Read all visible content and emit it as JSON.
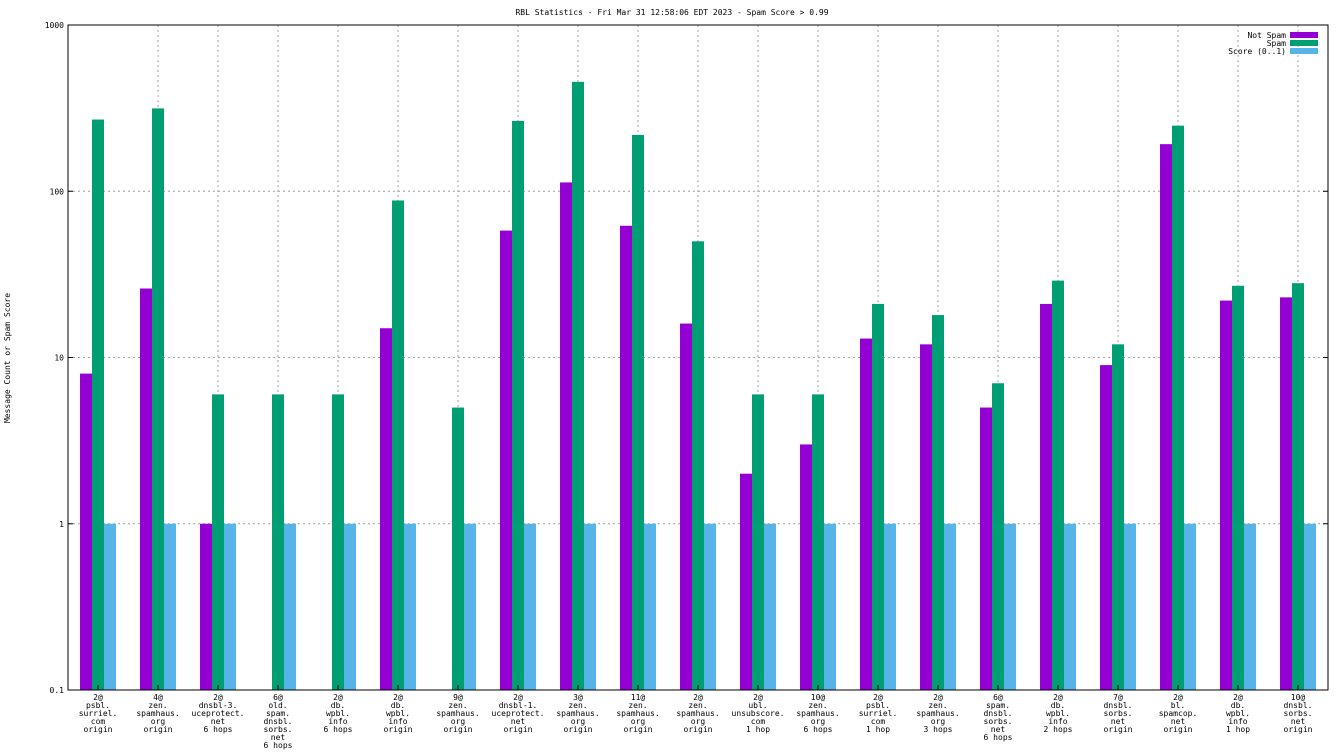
{
  "chart_data": {
    "type": "bar",
    "title": "RBL Statistics - Fri Mar 31 12:58:06 EDT 2023 - Spam Score > 0.99",
    "xlabel": "",
    "ylabel": "Message Count or Spam Score",
    "yscale": "log",
    "ylim": [
      0.1,
      1000
    ],
    "yticks": [
      {
        "value": 0.1,
        "label": "0.1"
      },
      {
        "value": 1,
        "label": "1"
      },
      {
        "value": 10,
        "label": "10"
      },
      {
        "value": 100,
        "label": "100"
      },
      {
        "value": 1000,
        "label": "1000"
      }
    ],
    "grid": true,
    "legend_position": "top-right",
    "categories": [
      [
        "2@",
        "psbl.",
        "surriel.",
        "com",
        "origin"
      ],
      [
        "4@",
        "zen.",
        "spamhaus.",
        "org",
        "origin"
      ],
      [
        "2@",
        "dnsbl-3.",
        "uceprotect.",
        "net",
        "6 hops"
      ],
      [
        "6@",
        "old.",
        "spam.",
        "dnsbl.",
        "sorbs.",
        "net",
        "6 hops"
      ],
      [
        "2@",
        "db.",
        "wpbl.",
        "info",
        "6 hops"
      ],
      [
        "2@",
        "db.",
        "wpbl.",
        "info",
        "origin"
      ],
      [
        "9@",
        "zen.",
        "spamhaus.",
        "org",
        "origin"
      ],
      [
        "2@",
        "dnsbl-1.",
        "uceprotect.",
        "net",
        "origin"
      ],
      [
        "3@",
        "zen.",
        "spamhaus.",
        "org",
        "origin"
      ],
      [
        "11@",
        "zen.",
        "spamhaus.",
        "org",
        "origin"
      ],
      [
        "2@",
        "zen.",
        "spamhaus.",
        "org",
        "origin"
      ],
      [
        "2@",
        "ubl.",
        "unsubscore.",
        "com",
        "1 hop"
      ],
      [
        "10@",
        "zen.",
        "spamhaus.",
        "org",
        "6 hops"
      ],
      [
        "2@",
        "psbl.",
        "surriel.",
        "com",
        "1 hop"
      ],
      [
        "2@",
        "zen.",
        "spamhaus.",
        "org",
        "3 hops"
      ],
      [
        "6@",
        "spam.",
        "dnsbl.",
        "sorbs.",
        "net",
        "6 hops"
      ],
      [
        "2@",
        "db.",
        "wpbl.",
        "info",
        "2 hops"
      ],
      [
        "7@",
        "dnsbl.",
        "sorbs.",
        "net",
        "origin"
      ],
      [
        "2@",
        "bl.",
        "spamcop.",
        "net",
        "origin"
      ],
      [
        "2@",
        "db.",
        "wpbl.",
        "info",
        "1 hop"
      ],
      [
        "10@",
        "dnsbl.",
        "sorbs.",
        "net",
        "origin"
      ]
    ],
    "series": [
      {
        "name": "Not Spam",
        "color": "#9400d3",
        "values": [
          8,
          26,
          1,
          null,
          null,
          15,
          null,
          58,
          113,
          62,
          16,
          2,
          3,
          13,
          12,
          5,
          21,
          9,
          192,
          22,
          23
        ]
      },
      {
        "name": "Spam",
        "color": "#009e73",
        "values": [
          270,
          315,
          6,
          6,
          6,
          88,
          5,
          265,
          455,
          218,
          50,
          6,
          6,
          21,
          18,
          7,
          29,
          12,
          248,
          27,
          28
        ]
      },
      {
        "name": "Score (0..1)",
        "color": "#56b4e9",
        "values": [
          1,
          1,
          1,
          1,
          1,
          1,
          1,
          1,
          1,
          1,
          1,
          1,
          1,
          1,
          1,
          1,
          1,
          1,
          1,
          1,
          1
        ]
      }
    ]
  }
}
